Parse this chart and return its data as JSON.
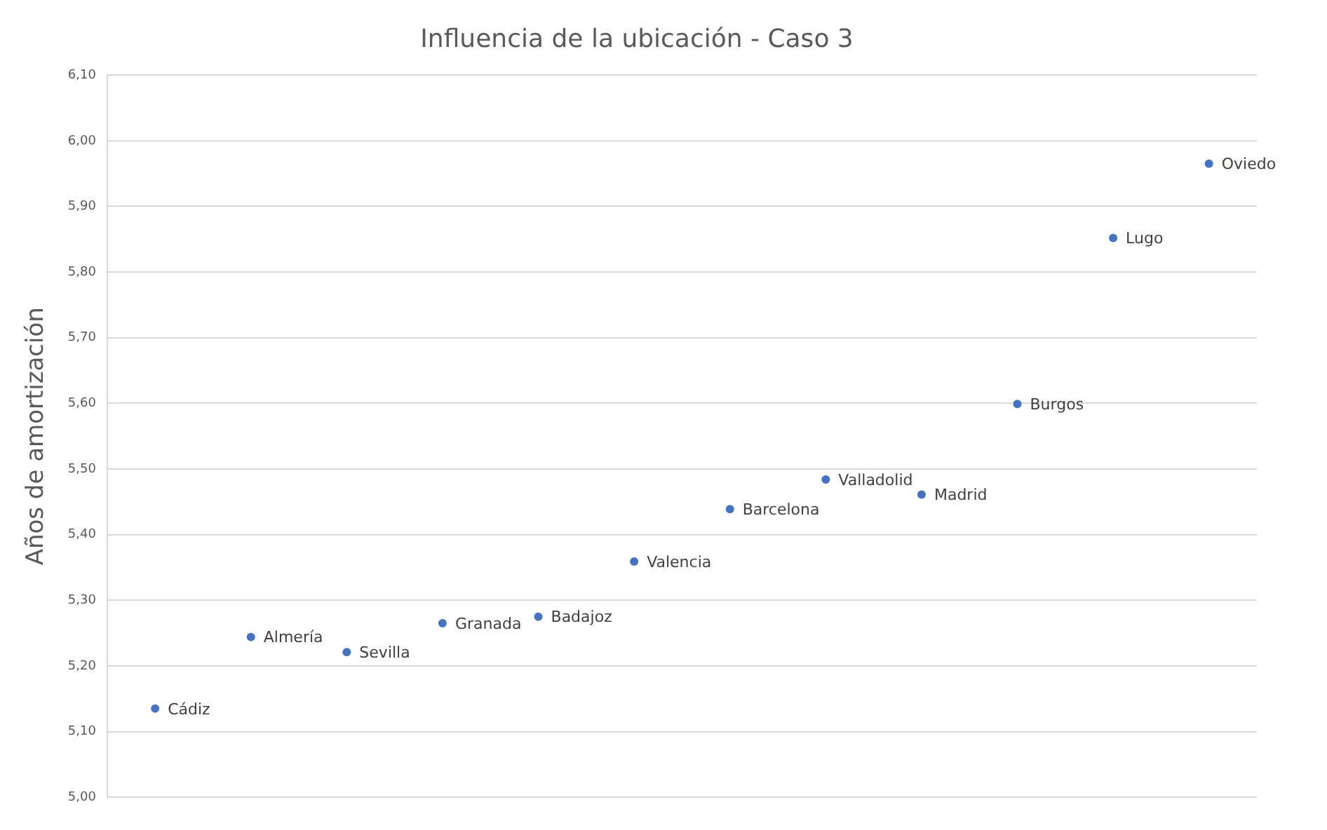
{
  "chart_data": {
    "type": "scatter",
    "title": "Influencia de la ubicación - Caso 3",
    "ylabel": "Años de amortización",
    "categories": [
      null,
      null,
      null,
      null,
      null,
      null,
      null,
      null,
      null,
      null,
      null,
      null
    ],
    "values": [
      5.135,
      5.244,
      5.221,
      5.265,
      5.275,
      5.359,
      5.439,
      5.484,
      5.461,
      5.599,
      5.852,
      5.965
    ],
    "annotations": [
      "Cádiz",
      "Almería",
      "Sevilla",
      "Granada",
      "Badajoz",
      "Valencia",
      "Barcelona",
      "Valladolid",
      "Madrid",
      "Burgos",
      "Lugo",
      "Oviedo"
    ],
    "color": "#4472c4",
    "ylim": [
      5.0,
      6.1
    ],
    "yticks": [
      {
        "value": 5.0,
        "label": "5,00"
      },
      {
        "value": 5.1,
        "label": "5,10"
      },
      {
        "value": 5.2,
        "label": "5,20"
      },
      {
        "value": 5.3,
        "label": "5,30"
      },
      {
        "value": 5.4,
        "label": "5,40"
      },
      {
        "value": 5.5,
        "label": "5,50"
      },
      {
        "value": 5.6,
        "label": "5,60"
      },
      {
        "value": 5.7,
        "label": "5,70"
      },
      {
        "value": 5.8,
        "label": "5,80"
      },
      {
        "value": 5.9,
        "label": "5,90"
      },
      {
        "value": 6.0,
        "label": "6,00"
      },
      {
        "value": 6.1,
        "label": "6,10"
      }
    ],
    "grid": "y",
    "tick_labels": "y",
    "marker": "circle",
    "legend": false
  }
}
